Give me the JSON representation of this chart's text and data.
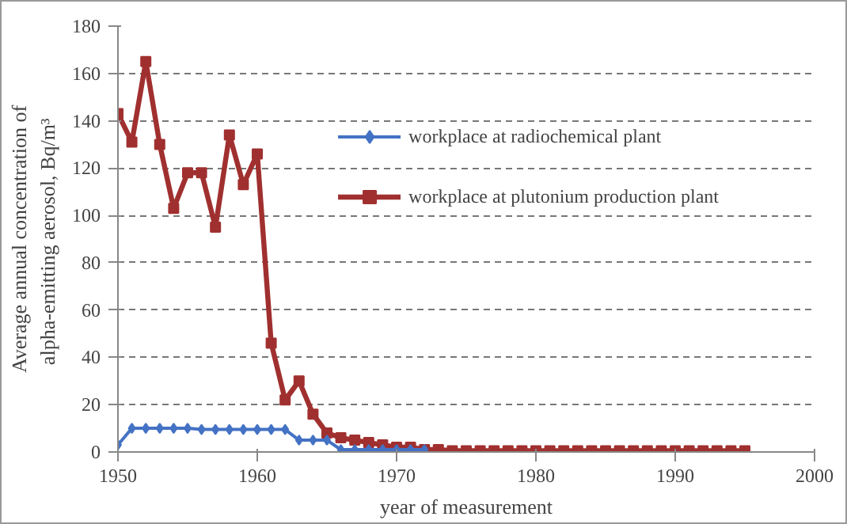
{
  "chart_data": {
    "type": "line",
    "xlabel": "year of measurement",
    "ylabel": "Average annual concentration of\nalpha-emitting  aerosol, Bq/m³",
    "xlim": [
      1950,
      2000
    ],
    "xticks": [
      1950,
      1960,
      1970,
      1980,
      1990,
      2000
    ],
    "ylim": [
      0,
      180
    ],
    "yticks": [
      0,
      20,
      40,
      60,
      80,
      100,
      120,
      140,
      160,
      180
    ],
    "grid": "y",
    "legend": "top right",
    "line_style": "solid",
    "series": [
      {
        "name": "workplace at radiochemical plant",
        "color": "#4472c4",
        "marker": "diamond",
        "x": [
          1950,
          1951,
          1952,
          1953,
          1954,
          1955,
          1956,
          1957,
          1958,
          1959,
          1960,
          1961,
          1962,
          1963,
          1964,
          1965,
          1966,
          1967,
          1968,
          1969,
          1970,
          1971,
          1972
        ],
        "values": [
          3,
          10,
          10,
          10,
          10,
          10,
          9.5,
          9.5,
          9.5,
          9.5,
          9.5,
          9.5,
          9.5,
          5,
          5,
          5,
          1,
          1,
          1,
          1,
          1,
          1,
          1
        ]
      },
      {
        "name": "workplace at plutonium production plant",
        "color": "#a0302f",
        "marker": "square",
        "x": [
          1950,
          1951,
          1952,
          1953,
          1954,
          1955,
          1956,
          1957,
          1958,
          1959,
          1960,
          1961,
          1962,
          1963,
          1964,
          1965,
          1966,
          1967,
          1968,
          1969,
          1970,
          1971,
          1972,
          1973,
          1974,
          1975,
          1976,
          1977,
          1978,
          1979,
          1980,
          1981,
          1982,
          1983,
          1984,
          1985,
          1986,
          1987,
          1988,
          1989,
          1990,
          1991,
          1992,
          1993,
          1994,
          1995
        ],
        "values": [
          143,
          131,
          165,
          130,
          103,
          118,
          118,
          95,
          134,
          113,
          126,
          46,
          22,
          30,
          16,
          8,
          6,
          5,
          4,
          3,
          2,
          2,
          1,
          1,
          0.5,
          0.5,
          0.5,
          0.5,
          0.5,
          0.5,
          0.5,
          0.5,
          0.5,
          0.5,
          0.5,
          0.5,
          0.5,
          0.5,
          0.5,
          0.5,
          0.5,
          0.5,
          0.5,
          0.5,
          0.5,
          0.5
        ]
      }
    ]
  }
}
